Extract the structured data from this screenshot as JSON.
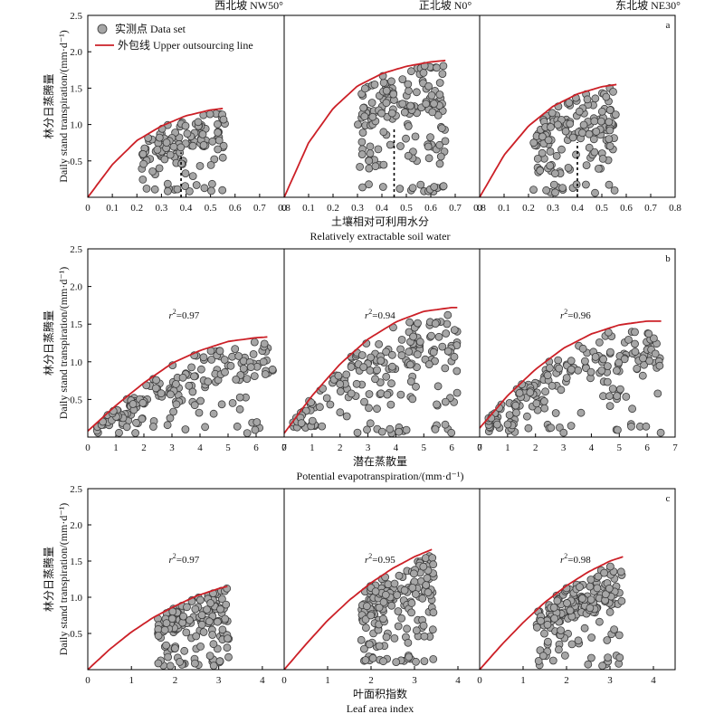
{
  "column_headers": [
    "西北坡 NW50°",
    "正北坡 N0°",
    "东北坡 NE30°"
  ],
  "legend": {
    "points_label": "实测点 Data set",
    "line_label": "外包线 Upper outsourcing line"
  },
  "y_label": {
    "cn": "林分日蒸腾量",
    "en": "Daily stand transpiration/(mm·d⁻¹)"
  },
  "colors": {
    "point_fill": "#a6a6a6",
    "point_stroke": "#3a3a3a",
    "curve": "#cc2027",
    "axis": "#000000"
  },
  "chart_data": [
    {
      "type": "scatter",
      "panel_letter": "a",
      "xlabel_cn": "土壤相对可利用水分",
      "xlabel_en": "Relatively extractable soil water",
      "xlim": [
        0,
        0.8
      ],
      "ylim": [
        0,
        2.5
      ],
      "xticks": [
        "0",
        "0.1",
        "0.2",
        "0.3",
        "0.4",
        "0.5",
        "0.6",
        "0.7",
        "0.8"
      ],
      "yticks": [
        "0.5",
        "1.0",
        "1.5",
        "2.0",
        "2.5"
      ],
      "subplots": [
        {
          "slope": "NW50°",
          "r2": "",
          "threshold_x": 0.38,
          "threshold_y": 1.12,
          "boundary_line": [
            [
              0,
              0
            ],
            [
              0.1,
              0.45
            ],
            [
              0.2,
              0.78
            ],
            [
              0.3,
              0.98
            ],
            [
              0.4,
              1.12
            ],
            [
              0.5,
              1.2
            ],
            [
              0.55,
              1.22
            ]
          ],
          "cluster": {
            "x_range": [
              0.22,
              0.56
            ],
            "y_max": 1.18,
            "n": 130
          }
        },
        {
          "slope": "N0°",
          "r2": "",
          "threshold_x": 0.45,
          "threshold_y": 1.72,
          "boundary_line": [
            [
              0,
              0
            ],
            [
              0.1,
              0.75
            ],
            [
              0.2,
              1.22
            ],
            [
              0.3,
              1.53
            ],
            [
              0.4,
              1.7
            ],
            [
              0.5,
              1.8
            ],
            [
              0.6,
              1.86
            ],
            [
              0.66,
              1.88
            ]
          ],
          "cluster": {
            "x_range": [
              0.3,
              0.66
            ],
            "y_max": 1.86,
            "n": 160
          }
        },
        {
          "slope": "NE30°",
          "r2": "",
          "threshold_x": 0.4,
          "threshold_y": 1.38,
          "boundary_line": [
            [
              0,
              0
            ],
            [
              0.1,
              0.58
            ],
            [
              0.2,
              0.98
            ],
            [
              0.3,
              1.25
            ],
            [
              0.4,
              1.42
            ],
            [
              0.5,
              1.52
            ],
            [
              0.56,
              1.55
            ]
          ],
          "cluster": {
            "x_range": [
              0.22,
              0.56
            ],
            "y_max": 1.55,
            "n": 150
          }
        }
      ]
    },
    {
      "type": "scatter",
      "panel_letter": "b",
      "xlabel_cn": "潜在蒸散量",
      "xlabel_en": "Potential evapotranspiration/(mm·d⁻¹)",
      "xlim": [
        0,
        7
      ],
      "ylim": [
        0,
        2.5
      ],
      "xticks": [
        "0",
        "1",
        "2",
        "3",
        "4",
        "5",
        "6",
        "7"
      ],
      "yticks": [
        "0.5",
        "1.0",
        "1.5",
        "2.0",
        "2.5"
      ],
      "subplots": [
        {
          "slope": "NW50°",
          "r2": "0.97",
          "boundary_line": [
            [
              0,
              0.08
            ],
            [
              1,
              0.42
            ],
            [
              2,
              0.72
            ],
            [
              3,
              0.98
            ],
            [
              4,
              1.15
            ],
            [
              5,
              1.27
            ],
            [
              6,
              1.32
            ],
            [
              6.4,
              1.33
            ]
          ],
          "cluster": {
            "x_range": [
              0.3,
              6.6
            ],
            "y_max": 1.3,
            "n": 180
          }
        },
        {
          "slope": "N0°",
          "r2": "0.94",
          "boundary_line": [
            [
              0,
              0.05
            ],
            [
              1,
              0.55
            ],
            [
              2,
              0.97
            ],
            [
              3,
              1.3
            ],
            [
              4,
              1.53
            ],
            [
              5,
              1.67
            ],
            [
              6,
              1.72
            ],
            [
              6.2,
              1.72
            ]
          ],
          "cluster": {
            "x_range": [
              0.3,
              6.2
            ],
            "y_max": 1.68,
            "n": 190
          }
        },
        {
          "slope": "NE30°",
          "r2": "0.96",
          "boundary_line": [
            [
              0,
              0.12
            ],
            [
              1,
              0.55
            ],
            [
              2,
              0.9
            ],
            [
              3,
              1.18
            ],
            [
              4,
              1.37
            ],
            [
              5,
              1.49
            ],
            [
              6,
              1.54
            ],
            [
              6.5,
              1.54
            ]
          ],
          "cluster": {
            "x_range": [
              0.3,
              6.5
            ],
            "y_max": 1.45,
            "n": 190
          }
        }
      ]
    },
    {
      "type": "scatter",
      "panel_letter": "c",
      "xlabel_cn": "叶面积指数",
      "xlabel_en": "Leaf area index",
      "xlim": [
        0,
        4.5
      ],
      "ylim": [
        0,
        2.5
      ],
      "xticks": [
        "0",
        "1",
        "2",
        "3",
        "4"
      ],
      "yticks": [
        "0.5",
        "1.0",
        "1.5",
        "2.0",
        "2.5"
      ],
      "subplots": [
        {
          "slope": "NW50°",
          "r2": "0.97",
          "boundary_line": [
            [
              0,
              0
            ],
            [
              0.5,
              0.28
            ],
            [
              1,
              0.52
            ],
            [
              1.5,
              0.72
            ],
            [
              2,
              0.88
            ],
            [
              2.5,
              1.02
            ],
            [
              3,
              1.12
            ],
            [
              3.2,
              1.15
            ]
          ],
          "cluster": {
            "x_range": [
              1.6,
              3.25
            ],
            "y_max": 1.15,
            "n": 160
          }
        },
        {
          "slope": "N0°",
          "r2": "0.95",
          "boundary_line": [
            [
              0,
              0
            ],
            [
              0.5,
              0.35
            ],
            [
              1,
              0.68
            ],
            [
              1.5,
              0.96
            ],
            [
              2,
              1.2
            ],
            [
              2.5,
              1.4
            ],
            [
              3,
              1.56
            ],
            [
              3.4,
              1.66
            ]
          ],
          "cluster": {
            "x_range": [
              1.75,
              3.45
            ],
            "y_max": 1.66,
            "n": 170
          }
        },
        {
          "slope": "NE30°",
          "r2": "0.98",
          "boundary_line": [
            [
              0,
              0
            ],
            [
              0.5,
              0.34
            ],
            [
              1,
              0.65
            ],
            [
              1.5,
              0.93
            ],
            [
              2,
              1.16
            ],
            [
              2.5,
              1.35
            ],
            [
              3,
              1.5
            ],
            [
              3.3,
              1.56
            ]
          ],
          "cluster": {
            "x_range": [
              1.3,
              3.3
            ],
            "y_max": 1.55,
            "n": 170
          }
        }
      ]
    }
  ]
}
